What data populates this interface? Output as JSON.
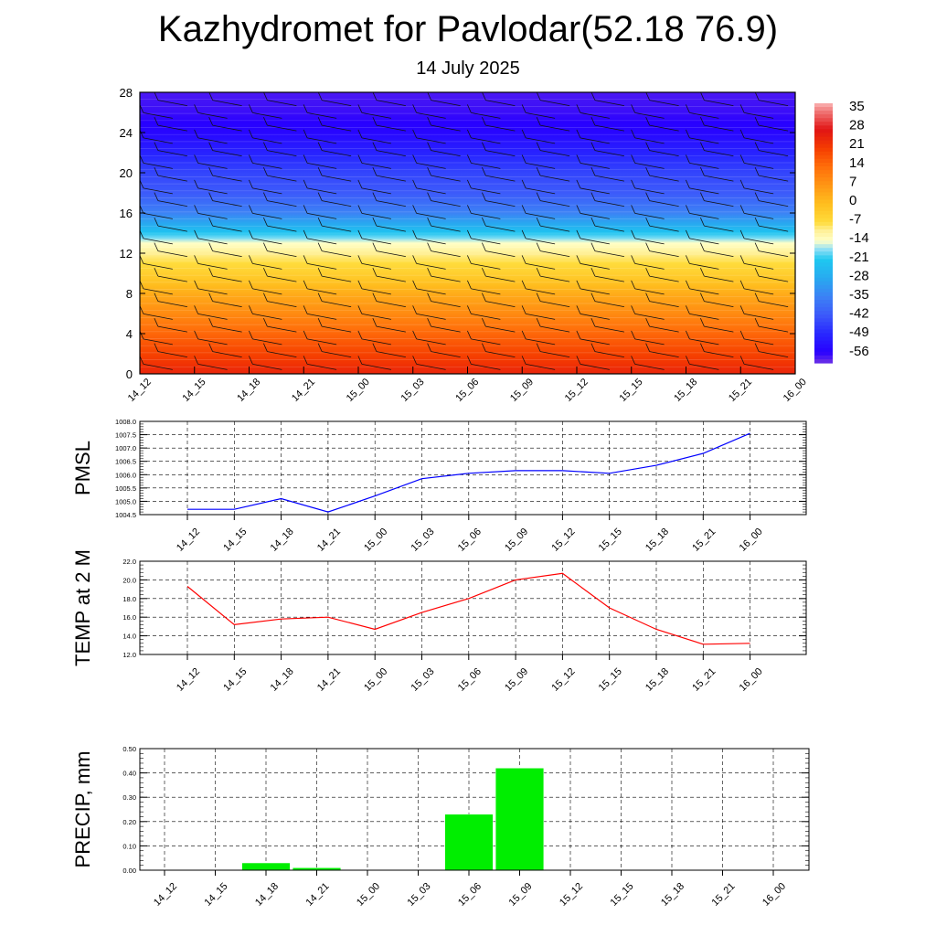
{
  "title": "Kazhydromet for Pavlodar(52.18 76.9)",
  "subtitle": "14 July 2025",
  "time_labels": [
    "14_12",
    "14_15",
    "14_18",
    "14_21",
    "15_00",
    "15_03",
    "15_06",
    "15_09",
    "15_12",
    "15_15",
    "15_18",
    "15_21",
    "16_00"
  ],
  "colors": {
    "pmsl_line": "#0000ff",
    "temp_line": "#ff0000",
    "precip_bar": "#00ee00",
    "grid": "#000000"
  },
  "chart_data": [
    {
      "type": "heatmap",
      "title": "",
      "xlabel": "",
      "ylabel": "",
      "x": [
        "14_12",
        "14_15",
        "14_18",
        "14_21",
        "15_00",
        "15_03",
        "15_06",
        "15_09",
        "15_12",
        "15_15",
        "15_18",
        "15_21",
        "16_00"
      ],
      "ylim": [
        0,
        28
      ],
      "yticks": [
        "0",
        "4",
        "8",
        "12",
        "16",
        "20",
        "24",
        "28"
      ],
      "colorbar": {
        "labels": [
          "35",
          "28",
          "21",
          "14",
          "7",
          "0",
          "-7",
          "-14",
          "-21",
          "-28",
          "-35",
          "-42",
          "-49",
          "-56"
        ],
        "range": [
          -60,
          38
        ]
      },
      "temperature_by_height": [
        {
          "height": 0,
          "temp": 25
        },
        {
          "height": 2,
          "temp": 20
        },
        {
          "height": 4,
          "temp": 15
        },
        {
          "height": 6,
          "temp": 9
        },
        {
          "height": 8,
          "temp": 3
        },
        {
          "height": 10,
          "temp": -4
        },
        {
          "height": 12,
          "temp": -10
        },
        {
          "height": 13,
          "temp": -14
        },
        {
          "height": 14,
          "temp": -22
        },
        {
          "height": 16,
          "temp": -35
        },
        {
          "height": 18,
          "temp": -42
        },
        {
          "height": 20,
          "temp": -45
        },
        {
          "height": 22,
          "temp": -50
        },
        {
          "height": 24,
          "temp": -55
        },
        {
          "height": 26,
          "temp": -57
        },
        {
          "height": 28,
          "temp": -58
        }
      ],
      "wind_barbs": true
    },
    {
      "type": "line",
      "title": "",
      "ylabel": "PMSL",
      "xlabel": "",
      "categories": [
        "14_12",
        "14_15",
        "14_18",
        "14_21",
        "15_00",
        "15_03",
        "15_06",
        "15_09",
        "15_12",
        "15_15",
        "15_18",
        "15_21",
        "16_00"
      ],
      "series": [
        {
          "values": [
            1004.7,
            1004.7,
            1005.1,
            1004.6,
            1005.2,
            1005.85,
            1006.05,
            1006.15,
            1006.15,
            1006.05,
            1006.35,
            1006.8,
            1007.55
          ]
        }
      ],
      "ylim": [
        1004.5,
        1008.0
      ],
      "yticks": [
        "1004.5",
        "1005.0",
        "1005.5",
        "1006.0",
        "1006.5",
        "1007.0",
        "1007.5",
        "1008.0"
      ],
      "grid": true
    },
    {
      "type": "line",
      "title": "",
      "ylabel": "TEMP at 2 M",
      "xlabel": "",
      "categories": [
        "14_12",
        "14_15",
        "14_18",
        "14_21",
        "15_00",
        "15_03",
        "15_06",
        "15_09",
        "15_12",
        "15_15",
        "15_18",
        "15_21",
        "16_00"
      ],
      "series": [
        {
          "values": [
            19.3,
            15.2,
            15.8,
            16.0,
            14.7,
            16.5,
            18.0,
            20.0,
            20.7,
            17.0,
            14.7,
            13.1,
            13.2
          ]
        }
      ],
      "ylim": [
        12.0,
        22.0
      ],
      "yticks": [
        "12.0",
        "14.0",
        "16.0",
        "18.0",
        "20.0",
        "22.0"
      ],
      "grid": true
    },
    {
      "type": "bar",
      "title": "",
      "ylabel": "PRECIP, mm",
      "xlabel": "",
      "categories": [
        "14_12",
        "14_15",
        "14_18",
        "14_21",
        "15_00",
        "15_03",
        "15_06",
        "15_09",
        "15_12",
        "15_15",
        "15_18",
        "15_21",
        "16_00"
      ],
      "values": [
        0,
        0,
        0.03,
        0.01,
        0,
        0,
        0.23,
        0.42,
        0,
        0,
        0,
        0,
        0
      ],
      "ylim": [
        0,
        0.5
      ],
      "yticks": [
        "0.00",
        "0.10",
        "0.20",
        "0.30",
        "0.40",
        "0.50"
      ],
      "grid": true
    }
  ]
}
